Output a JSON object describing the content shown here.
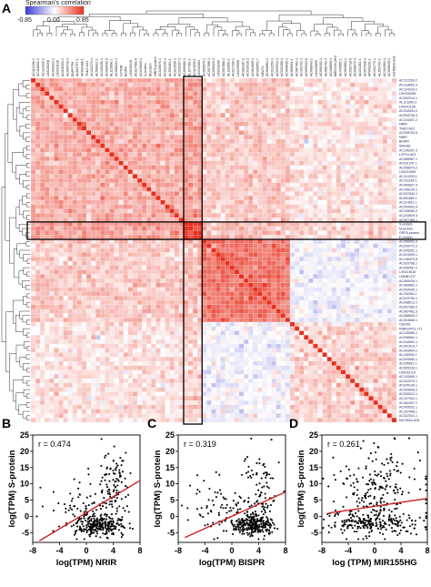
{
  "panel_letters": {
    "a": "A",
    "b": "B",
    "c": "C",
    "d": "D"
  },
  "colorbar": {
    "title": "Spearman's correlation",
    "ticks": [
      "-0.85",
      "0.00",
      "0.85"
    ],
    "low_color": "#3b3bd6",
    "mid_color": "#ffffff",
    "high_color": "#e8301e"
  },
  "heatmap": {
    "highlighted_rows": [
      "S-protein",
      "M-protein",
      "ORF8-protein",
      "E-protein"
    ],
    "top_labels": [
      "AC112206.2",
      "AC118652.4",
      "AC124319.1",
      "LINC00208",
      "AC092014.1",
      "LINC01128",
      "AC016394.2",
      "AC005726.4",
      "ENPP7P8",
      "AL662797.1",
      "AP003486.1",
      "TNK2-AS1",
      "AC232271.1",
      "AL590822.3",
      "AC109450.1",
      "AC009093.9",
      "AL121890.2",
      "AC068254.1",
      "CYTOR",
      "BISPR",
      "LINC00346",
      "AC027682.6",
      "AC010609.1",
      "S-protein",
      "M-protein",
      "ORF8-protein",
      "AC025070.1",
      "AC022194.1",
      "AL359183.1",
      "AC021050.1",
      "AC010157.1",
      "AC005082.1",
      "AL137789.1",
      "AC119396.1",
      "LINC02084",
      "AC069079.1",
      "AC007098.1",
      "AC099329.2",
      "LINC01186",
      "AC087888.1",
      "AL132656.2",
      "AC017100.1",
      "LINC00996",
      "AC092287.1",
      "AC010326.2",
      "AC064805.1",
      "AP000553.7",
      "NEAT1",
      "AC008964.1",
      "AC012254.1",
      "AC020913.1",
      "AC022150.1",
      "AC009630.1",
      "AL589693.1",
      "AC087481.2",
      "AC103702.1",
      "AC005332.6",
      "AC068643.1",
      "LINC00899",
      "AC090152.1",
      "AC008763.4",
      "AC106899.1",
      "MIR4435-2HG",
      "AL049555.1",
      "AC093583.1",
      "AC092718.5",
      "AC008074.3",
      "AL031282.1",
      "AC007938.3",
      "AP001160.1",
      "AC134772.1",
      "AL353746.1",
      "AC104961.1",
      "AC090049.1",
      "NUTM2A-AS1"
    ],
    "right_labels": [
      "AC112206.2",
      "AC118652.4",
      "AC124319.1",
      "LINC00208",
      "AC092014.1",
      "AL121890.2",
      "LINC01128",
      "AC016394.2",
      "AC005726.4",
      "AC116407.2",
      "NRIR",
      "TNK2-AS1",
      "AC008764.6",
      "NRIR",
      "BISPR",
      "SNHG8",
      "AC245297.3",
      "LZP10-AS1",
      "AC068987.1",
      "AC011247.1",
      "AC008079.2",
      "LINC01599",
      "AC110299.1",
      "AC131160.1",
      "AC005837.3",
      "AC108134.1",
      "AC007842.1",
      "AL590486.1",
      "AC114811.1",
      "AC009093.9",
      "AC108060.2",
      "AC243829.4",
      "AC007485.1",
      "S-protein",
      "M-protein",
      "ORF8-protein",
      "E-protein",
      "AC006063.3",
      "AC234772.2",
      "AC005281.1",
      "AC024909.1",
      "AC136475.5",
      "AC020766.1",
      "AC090457.2",
      "LINC01615",
      "LMNB1-DT",
      "AC084026.1",
      "AC083862.1",
      "AC009095.1",
      "AL139260.1",
      "AC023750.1",
      "AC098613.1",
      "AC007383.2",
      "AC087481.3",
      "AC068643.2",
      "AC004846.1",
      "C8orf31",
      "RABGAP1L-IT1",
      "AC135985.1",
      "AC096664.1",
      "AC016591.1",
      "AC051619.7",
      "AC009654.1",
      "AL135905.1",
      "AC009060.1",
      "AL035681.1",
      "AC005228.1",
      "LINC02119",
      "AC103590.1",
      "AC022075.1",
      "AC245140.1",
      "AC009646.2",
      "AC000512.1",
      "AC127920.1",
      "AC084357.2",
      "AC009532.1",
      "AC107959.1",
      "AC022031.1",
      "NUTM2A-AS1"
    ],
    "description_rows": 79
  },
  "scatter_plots": [
    {
      "panel": "B",
      "r_label": "r = 0.474",
      "x_label": "log(TPM) NRIR",
      "y_label": "log(TPM) S-protein",
      "x_ticks": [
        "-8",
        "-4",
        "0",
        "4",
        "8"
      ],
      "y_ticks": [
        "-5",
        "0",
        "5",
        "10",
        "15",
        "20",
        "25"
      ],
      "xlim": [
        -8,
        8
      ],
      "ylim": [
        -8,
        25
      ],
      "trend": {
        "x1": -7,
        "y1": -7.5,
        "x2": 8,
        "y2": 11
      }
    },
    {
      "panel": "C",
      "r_label": "r = 0.319",
      "x_label": "log(TPM) BISPR",
      "y_label": "log(TPM) S-protein",
      "x_ticks": [
        "-8",
        "-4",
        "0",
        "4",
        "8"
      ],
      "y_ticks": [
        "-5",
        "0",
        "5",
        "10",
        "15",
        "20",
        "25"
      ],
      "xlim": [
        -8,
        8
      ],
      "ylim": [
        -8,
        25
      ],
      "trend": {
        "x1": -7,
        "y1": -6.5,
        "x2": 8,
        "y2": 7.5
      }
    },
    {
      "panel": "D",
      "r_label": "r = 0.261",
      "x_label": "log (TPM) MIR155HG",
      "y_label": "log(TPM) S-protein",
      "x_ticks": [
        "-8",
        "-4",
        "0",
        "4",
        "8"
      ],
      "y_ticks": [
        "-5",
        "0",
        "5",
        "10",
        "15",
        "20",
        "25"
      ],
      "xlim": [
        -8,
        8
      ],
      "ylim": [
        -8,
        25
      ],
      "trend": {
        "x1": -7,
        "y1": 1.0,
        "x2": 8,
        "y2": 5.5
      }
    }
  ],
  "colors": {
    "frame": "#000000",
    "trend_line": "#cc2222",
    "point": "#000000",
    "right_label_color": "#1a2a66"
  }
}
